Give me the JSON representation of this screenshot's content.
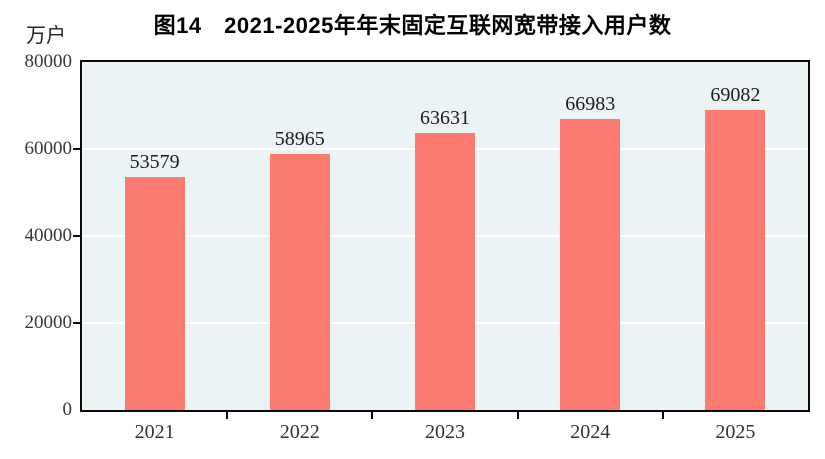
{
  "title": "图14　2021-2025年年末固定互联网宽带接入用户数",
  "y_axis_unit": "万户",
  "colors": {
    "bar": "#fb7b73",
    "plot_background": "#ecf3f5",
    "gridline": "#ffffff",
    "axis_border": "#0a0a0a",
    "title_text": "#000000",
    "tick_text": "#383838",
    "value_label_text": "#1c1c1c",
    "page_background": "#ffffff"
  },
  "chart_data": {
    "type": "bar",
    "title": "图14　2021-2025年年末固定互联网宽带接入用户数",
    "categories": [
      "2021",
      "2022",
      "2023",
      "2024",
      "2025"
    ],
    "values": [
      53579,
      58965,
      63631,
      66983,
      69082
    ],
    "xlabel": "",
    "ylabel": "万户",
    "ylim": [
      0,
      80000
    ],
    "yticks": [
      0,
      20000,
      40000,
      60000,
      80000
    ],
    "bar_labels": true,
    "legend": "none",
    "grid": "horizontal white gridlines on shaded panel, full black panel border, ticks outside axis"
  }
}
